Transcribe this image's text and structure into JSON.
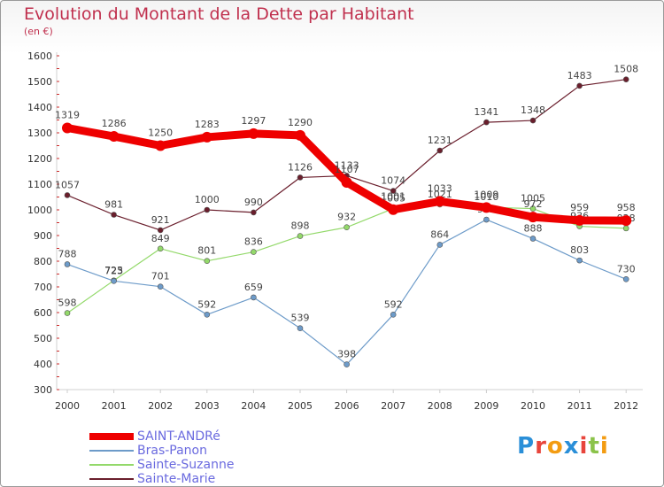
{
  "chart_data": {
    "type": "line",
    "title": "Evolution du Montant de la Dette par Habitant",
    "subtitle": "(en €)",
    "categories": [
      "2000",
      "2001",
      "2002",
      "2003",
      "2004",
      "2005",
      "2006",
      "2007",
      "2008",
      "2009",
      "2010",
      "2011",
      "2012"
    ],
    "ylim": [
      300,
      1600
    ],
    "yticks": [
      300,
      400,
      500,
      600,
      700,
      800,
      900,
      1000,
      1100,
      1200,
      1300,
      1400,
      1500,
      1600
    ],
    "grid": false,
    "legend_position": "bottom-left",
    "series": [
      {
        "name": "Sainte-Marie",
        "color": "#6a1e2c",
        "values": [
          1057,
          981,
          921,
          1000,
          990,
          1126,
          1133,
          1074,
          1231,
          1341,
          1348,
          1483,
          1508
        ]
      },
      {
        "name": "Sainte-Suzanne",
        "color": "#93d96a",
        "values": [
          598,
          725,
          849,
          801,
          836,
          898,
          932,
          1005,
          1021,
          1010,
          1005,
          936,
          928
        ]
      },
      {
        "name": "Bras-Panon",
        "color": "#6d9bc9",
        "values": [
          788,
          723,
          701,
          592,
          659,
          539,
          398,
          592,
          864,
          962,
          888,
          803,
          730
        ]
      },
      {
        "name": "SAINT-ANDRé",
        "color": "#ee0000",
        "values": [
          1319,
          1286,
          1250,
          1283,
          1297,
          1290,
          1107,
          1001,
          1033,
          1009,
          972,
          959,
          958
        ]
      }
    ]
  },
  "legend": {
    "items": [
      {
        "label": "SAINT-ANDRé",
        "color": "#ee0000"
      },
      {
        "label": "Bras-Panon",
        "color": "#6d9bc9"
      },
      {
        "label": "Sainte-Suzanne",
        "color": "#93d96a"
      },
      {
        "label": "Sainte-Marie",
        "color": "#6a1e2c"
      }
    ]
  },
  "logo": {
    "text": "Proxiti",
    "colors": [
      "#2a8fd8",
      "#e8453c",
      "#f39c12",
      "#2a8fd8",
      "#e8453c",
      "#8bc34a",
      "#f39c12"
    ]
  }
}
